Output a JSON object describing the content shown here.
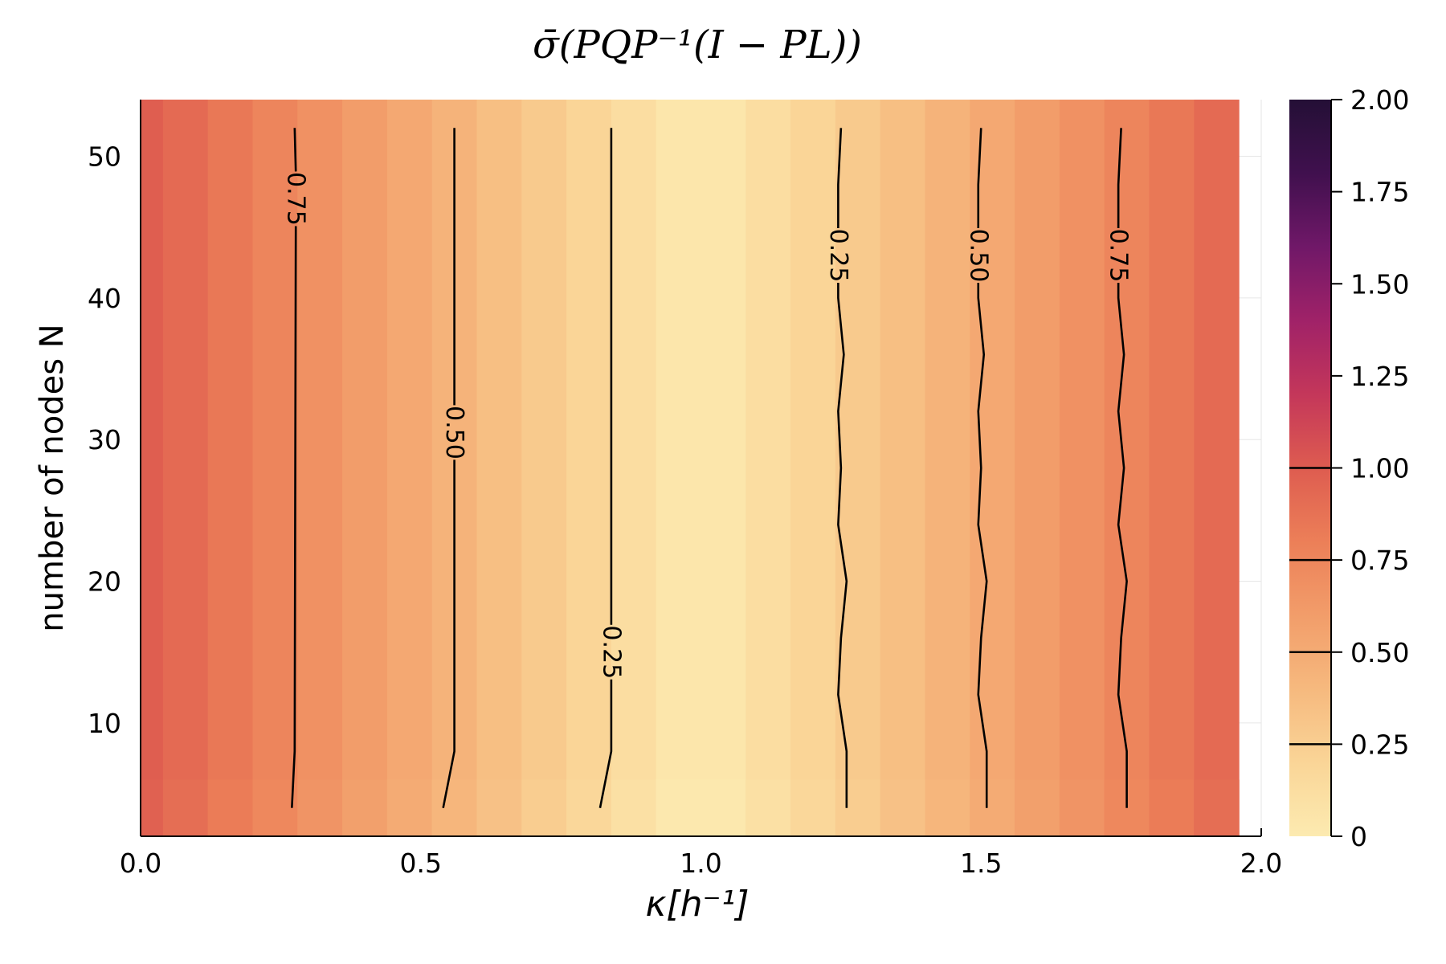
{
  "chart_data": {
    "type": "heatmap",
    "title": "σ̄(PQP⁻¹(I − PL))",
    "xlabel": "κ[h⁻¹]",
    "ylabel": "number of nodes N",
    "xlim": [
      0,
      2
    ],
    "ylim": [
      2,
      54
    ],
    "x_ticks": [
      "0.0",
      "0.5",
      "1.0",
      "1.5",
      "2.0"
    ],
    "x_tick_values": [
      0,
      0.5,
      1.0,
      1.5,
      2.0
    ],
    "y_ticks": [
      "10",
      "20",
      "30",
      "40",
      "50"
    ],
    "y_tick_values": [
      10,
      20,
      30,
      40,
      50
    ],
    "colorbar": {
      "range": [
        0,
        2
      ],
      "ticks": [
        "0",
        "0.25",
        "0.50",
        "0.75",
        "1.00",
        "1.25",
        "1.50",
        "1.75",
        "2.00"
      ],
      "tick_values": [
        0,
        0.25,
        0.5,
        0.75,
        1.0,
        1.25,
        1.5,
        1.75,
        2.0
      ],
      "contour_marks": [
        0.25,
        0.5,
        0.75,
        1.0
      ],
      "colormap": "magma-reversed"
    },
    "grid": true,
    "data_x_edges": [
      0,
      0.04,
      0.12,
      0.2,
      0.28,
      0.36,
      0.44,
      0.52,
      0.6,
      0.68,
      0.76,
      0.84,
      0.92,
      1.0,
      1.08,
      1.16,
      1.24,
      1.32,
      1.4,
      1.48,
      1.56,
      1.64,
      1.72,
      1.8,
      1.88,
      1.96
    ],
    "cell_values": [
      0.99,
      0.92,
      0.84,
      0.76,
      0.68,
      0.6,
      0.52,
      0.44,
      0.36,
      0.28,
      0.2,
      0.12,
      0.04,
      0.04,
      0.12,
      0.2,
      0.28,
      0.36,
      0.44,
      0.52,
      0.6,
      0.68,
      0.76,
      0.84,
      0.92
    ],
    "contours": [
      {
        "level": "0.75",
        "label_x": 0.277,
        "label_y": 47,
        "points": [
          [
            0.27,
            4
          ],
          [
            0.275,
            8
          ],
          [
            0.275,
            46
          ],
          [
            0.275,
            52
          ]
        ]
      },
      {
        "level": "0.50",
        "label_x": 0.56,
        "label_y": 30.5,
        "points": [
          [
            0.54,
            4
          ],
          [
            0.56,
            8
          ],
          [
            0.56,
            20
          ],
          [
            0.56,
            30
          ],
          [
            0.56,
            52
          ]
        ]
      },
      {
        "level": "0.25",
        "label_x": 0.84,
        "label_y": 15,
        "points": [
          [
            0.82,
            4
          ],
          [
            0.84,
            8
          ],
          [
            0.84,
            20
          ],
          [
            0.84,
            52
          ]
        ]
      },
      {
        "level": "0.25",
        "label_x": 1.245,
        "label_y": 43,
        "points": [
          [
            1.26,
            4
          ],
          [
            1.26,
            8
          ],
          [
            1.245,
            12
          ],
          [
            1.25,
            16
          ],
          [
            1.26,
            20
          ],
          [
            1.245,
            24
          ],
          [
            1.25,
            28
          ],
          [
            1.245,
            32
          ],
          [
            1.255,
            36
          ],
          [
            1.245,
            40
          ],
          [
            1.245,
            44
          ],
          [
            1.245,
            48
          ],
          [
            1.25,
            52
          ]
        ]
      },
      {
        "level": "0.50",
        "label_x": 1.495,
        "label_y": 43,
        "points": [
          [
            1.51,
            4
          ],
          [
            1.51,
            8
          ],
          [
            1.495,
            12
          ],
          [
            1.5,
            16
          ],
          [
            1.51,
            20
          ],
          [
            1.495,
            24
          ],
          [
            1.5,
            28
          ],
          [
            1.495,
            32
          ],
          [
            1.505,
            36
          ],
          [
            1.495,
            40
          ],
          [
            1.495,
            44
          ],
          [
            1.495,
            48
          ],
          [
            1.5,
            52
          ]
        ]
      },
      {
        "level": "0.75",
        "label_x": 1.745,
        "label_y": 43,
        "points": [
          [
            1.76,
            4
          ],
          [
            1.76,
            8
          ],
          [
            1.745,
            12
          ],
          [
            1.75,
            16
          ],
          [
            1.76,
            20
          ],
          [
            1.745,
            24
          ],
          [
            1.755,
            28
          ],
          [
            1.745,
            32
          ],
          [
            1.755,
            36
          ],
          [
            1.745,
            40
          ],
          [
            1.745,
            44
          ],
          [
            1.745,
            48
          ],
          [
            1.75,
            52
          ]
        ]
      }
    ]
  }
}
